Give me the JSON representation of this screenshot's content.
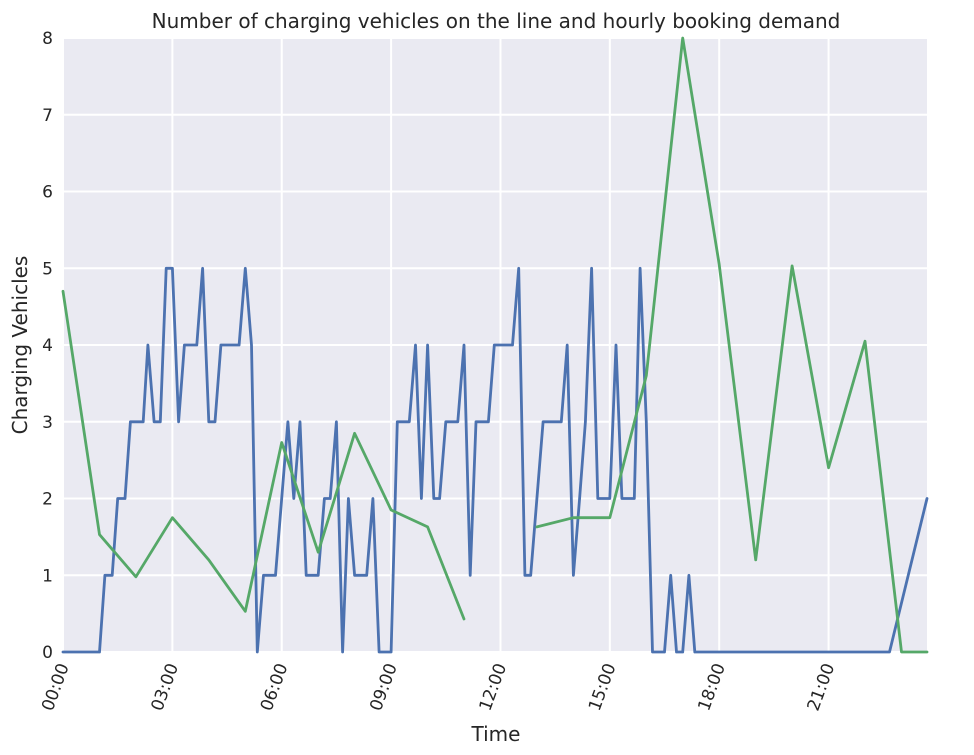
{
  "chart_data": {
    "type": "line",
    "title": "Number of charging vehicles on the line and hourly booking demand",
    "xlabel": "Time",
    "ylabel": "Charging Vehicles",
    "xlim": [
      0,
      23.7
    ],
    "ylim": [
      0,
      8
    ],
    "grid": true,
    "x_ticks": [
      0,
      3,
      6,
      9,
      12,
      15,
      18,
      21
    ],
    "x_tick_labels": [
      "00:00",
      "03:00",
      "06:00",
      "09:00",
      "12:00",
      "15:00",
      "18:00",
      "21:00"
    ],
    "y_ticks": [
      0,
      1,
      2,
      3,
      4,
      5,
      6,
      7,
      8
    ],
    "y_tick_labels": [
      "0",
      "1",
      "2",
      "3",
      "4",
      "5",
      "6",
      "7",
      "8"
    ],
    "series": [
      {
        "color": "#4c72b0",
        "points": [
          [
            0.0,
            0
          ],
          [
            1.0,
            0
          ],
          [
            1.15,
            1
          ],
          [
            1.35,
            1
          ],
          [
            1.5,
            2
          ],
          [
            1.7,
            2
          ],
          [
            1.85,
            3
          ],
          [
            2.2,
            3
          ],
          [
            2.33,
            4
          ],
          [
            2.5,
            3
          ],
          [
            2.67,
            3
          ],
          [
            2.83,
            5
          ],
          [
            3.0,
            5
          ],
          [
            3.17,
            3
          ],
          [
            3.33,
            4
          ],
          [
            3.67,
            4
          ],
          [
            3.83,
            5
          ],
          [
            4.0,
            3
          ],
          [
            4.17,
            3
          ],
          [
            4.33,
            4
          ],
          [
            4.83,
            4
          ],
          [
            5.0,
            5
          ],
          [
            5.17,
            4
          ],
          [
            5.33,
            0
          ],
          [
            5.5,
            1
          ],
          [
            5.83,
            1
          ],
          [
            6.0,
            2
          ],
          [
            6.17,
            3
          ],
          [
            6.33,
            2
          ],
          [
            6.5,
            3
          ],
          [
            6.67,
            1
          ],
          [
            7.0,
            1
          ],
          [
            7.17,
            2
          ],
          [
            7.33,
            2
          ],
          [
            7.5,
            3
          ],
          [
            7.67,
            0
          ],
          [
            7.83,
            2
          ],
          [
            8.0,
            1
          ],
          [
            8.33,
            1
          ],
          [
            8.5,
            2
          ],
          [
            8.67,
            0
          ],
          [
            9.0,
            0
          ],
          [
            9.17,
            3
          ],
          [
            9.5,
            3
          ],
          [
            9.67,
            4
          ],
          [
            9.83,
            2
          ],
          [
            10.0,
            4
          ],
          [
            10.17,
            2
          ],
          [
            10.33,
            2
          ],
          [
            10.5,
            3
          ],
          [
            10.83,
            3
          ],
          [
            11.0,
            4
          ],
          [
            11.17,
            1
          ],
          [
            11.33,
            3
          ],
          [
            11.67,
            3
          ],
          [
            11.83,
            4
          ],
          [
            12.33,
            4
          ],
          [
            12.5,
            5
          ],
          [
            12.67,
            1
          ],
          [
            12.83,
            1
          ],
          [
            13.0,
            2
          ],
          [
            13.17,
            3
          ],
          [
            13.67,
            3
          ],
          [
            13.83,
            4
          ],
          [
            14.0,
            1
          ],
          [
            14.17,
            2
          ],
          [
            14.33,
            3
          ],
          [
            14.5,
            5
          ],
          [
            14.67,
            2
          ],
          [
            15.0,
            2
          ],
          [
            15.17,
            4
          ],
          [
            15.33,
            2
          ],
          [
            15.67,
            2
          ],
          [
            15.83,
            5
          ],
          [
            16.0,
            3
          ],
          [
            16.17,
            0
          ],
          [
            16.5,
            0
          ],
          [
            16.67,
            1
          ],
          [
            16.83,
            0
          ],
          [
            17.0,
            0
          ],
          [
            17.17,
            1
          ],
          [
            17.33,
            0
          ],
          [
            22.67,
            0
          ],
          [
            23.7,
            2
          ]
        ]
      },
      {
        "color": "#55a868",
        "segments": [
          [
            [
              0.0,
              4.7
            ],
            [
              1.0,
              1.53
            ],
            [
              2.0,
              0.98
            ],
            [
              3.0,
              1.75
            ],
            [
              4.0,
              1.2
            ],
            [
              5.0,
              0.53
            ],
            [
              6.0,
              2.73
            ],
            [
              7.0,
              1.3
            ],
            [
              8.0,
              2.85
            ],
            [
              9.0,
              1.85
            ],
            [
              10.0,
              1.63
            ],
            [
              11.0,
              0.43
            ]
          ],
          [
            [
              13.0,
              1.63
            ],
            [
              14.0,
              1.75
            ],
            [
              15.0,
              1.75
            ],
            [
              16.0,
              3.6
            ],
            [
              17.0,
              8.0
            ],
            [
              18.0,
              5.05
            ],
            [
              19.0,
              1.2
            ],
            [
              20.0,
              5.03
            ],
            [
              21.0,
              2.4
            ],
            [
              22.0,
              4.05
            ],
            [
              23.0,
              0
            ],
            [
              23.7,
              0
            ]
          ]
        ]
      }
    ]
  }
}
